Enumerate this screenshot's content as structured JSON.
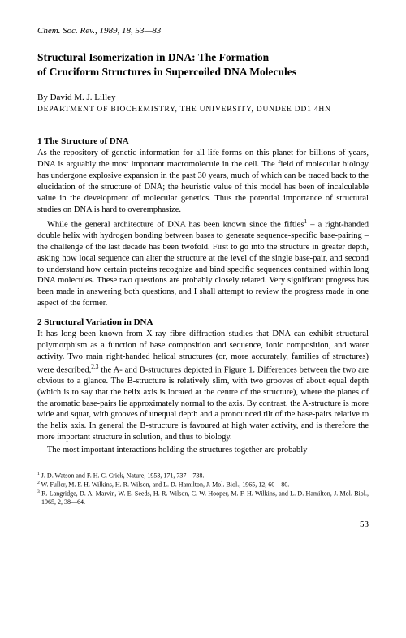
{
  "journal_ref": "Chem. Soc. Rev., 1989, 18, 53—83",
  "title_line1": "Structural Isomerization in DNA: The Formation",
  "title_line2": "of Cruciform Structures in Supercoiled DNA Molecules",
  "author": "By David M. J. Lilley",
  "affiliation": "DEPARTMENT OF BIOCHEMISTRY, THE UNIVERSITY, DUNDEE DD1 4HN",
  "section1_heading": "1 The Structure of DNA",
  "section1_p1": "As the repository of genetic information for all life-forms on this planet for billions of years, DNA is arguably the most important macromolecule in the cell. The field of molecular biology has undergone explosive expansion in the past 30 years, much of which can be traced back to the elucidation of the structure of DNA; the heuristic value of this model has been of incalculable value in the development of molecular genetics. Thus the potential importance of structural studies on DNA is hard to overemphasize.",
  "section1_p2a": "While the general architecture of DNA has been known since the fifties",
  "section1_p2b": " – a right-handed double helix with hydrogen bonding between bases to generate sequence-specific base-pairing – the challenge of the last decade has been twofold. First to go into the structure in greater depth, asking how local sequence can alter the structure at the level of the single base-pair, and second to understand how certain proteins recognize and bind specific sequences contained within long DNA molecules. These two questions are probably closely related. Very significant progress has been made in answering both questions, and I shall attempt to review the progress made in one aspect of the former.",
  "section2_heading": "2 Structural Variation in DNA",
  "section2_p1a": "It has long been known from X-ray fibre diffraction studies that DNA can exhibit structural polymorphism as a function of base composition and sequence, ionic composition, and water activity. Two main right-handed helical structures (or, more accurately, families of structures) were described,",
  "section2_p1b": " the A- and B-structures depicted in Figure 1. Differences between the two are obvious to a glance. The B-structure is relatively slim, with two grooves of about equal depth (which is to say that the helix axis is located at the centre of the structure), where the planes of the aromatic base-pairs lie approximately normal to the axis. By contrast, the A-structure is more wide and squat, with grooves of unequal depth and a pronounced tilt of the base-pairs relative to the helix axis. In general the B-structure is favoured at high water activity, and is therefore the more important structure in solution, and thus to biology.",
  "section2_p2": "The most important interactions holding the structures together are probably",
  "footnote1": " J. D. Watson and F. H. C. Crick, Nature, 1953, 171, 737—738.",
  "footnote2": " W. Fuller, M. F. H. Wilkins, H. R. Wilson, and L. D. Hamilton, J. Mol. Biol., 1965, 12, 60—80.",
  "footnote3": " R. Langridge, D. A. Marvin, W. E. Seeds, H. R. Wilson, C. W. Hooper, M. F. H. Wilkins, and L. D. Hamilton, J. Mol. Biol., 1965, 2, 38—64.",
  "page_number": "53"
}
